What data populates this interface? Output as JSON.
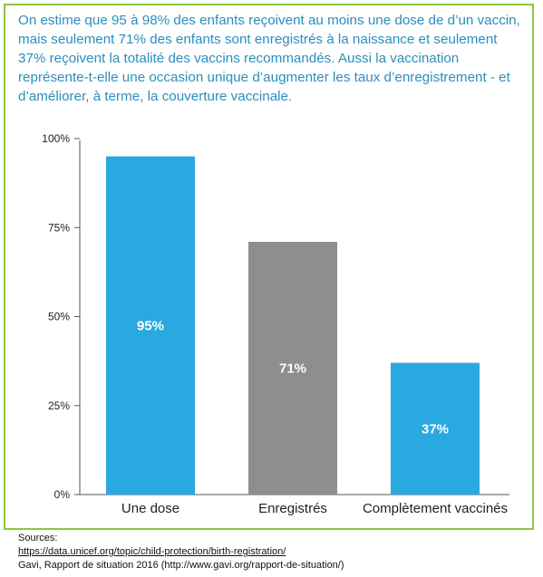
{
  "intro_text": "On estime que 95 à 98% des enfants reçoivent au moins une dose de d’un vaccin, mais seulement 71% des enfants sont enregistrés à la naissance et seulement 37% reçoivent la totalité des vaccins recommandés. Aussi la vaccination représente-t-elle une occasion unique d’augmenter les taux d’enregistrement - et d’améliorer, à terme, la couverture vaccinale.",
  "colors": {
    "border": "#8dc63f",
    "intro_text": "#2a8fbd",
    "bar_blue": "#2aa8e0",
    "bar_gray": "#8e8e8e"
  },
  "chart_data": {
    "type": "bar",
    "categories": [
      "Une dose",
      "Enregistrés",
      "Complètement vaccinés"
    ],
    "values": [
      95,
      71,
      37
    ],
    "data_labels": [
      "95%",
      "71%",
      "37%"
    ],
    "bar_colors": [
      "#2aa8e0",
      "#8e8e8e",
      "#2aa8e0"
    ],
    "ylim": [
      0,
      100
    ],
    "yticks": [
      0,
      25,
      50,
      75,
      100
    ],
    "ytick_labels": [
      "0%",
      "25%",
      "50%",
      "75%",
      "100%"
    ],
    "grid": false,
    "title": "",
    "xlabel": "",
    "ylabel": ""
  },
  "sources": {
    "heading": "Sources:",
    "link": "https://data.unicef.org/topic/child-protection/birth-registration/",
    "line2": "Gavi, Rapport de situation 2016 (http://www.gavi.org/rapport-de-situation/)"
  }
}
